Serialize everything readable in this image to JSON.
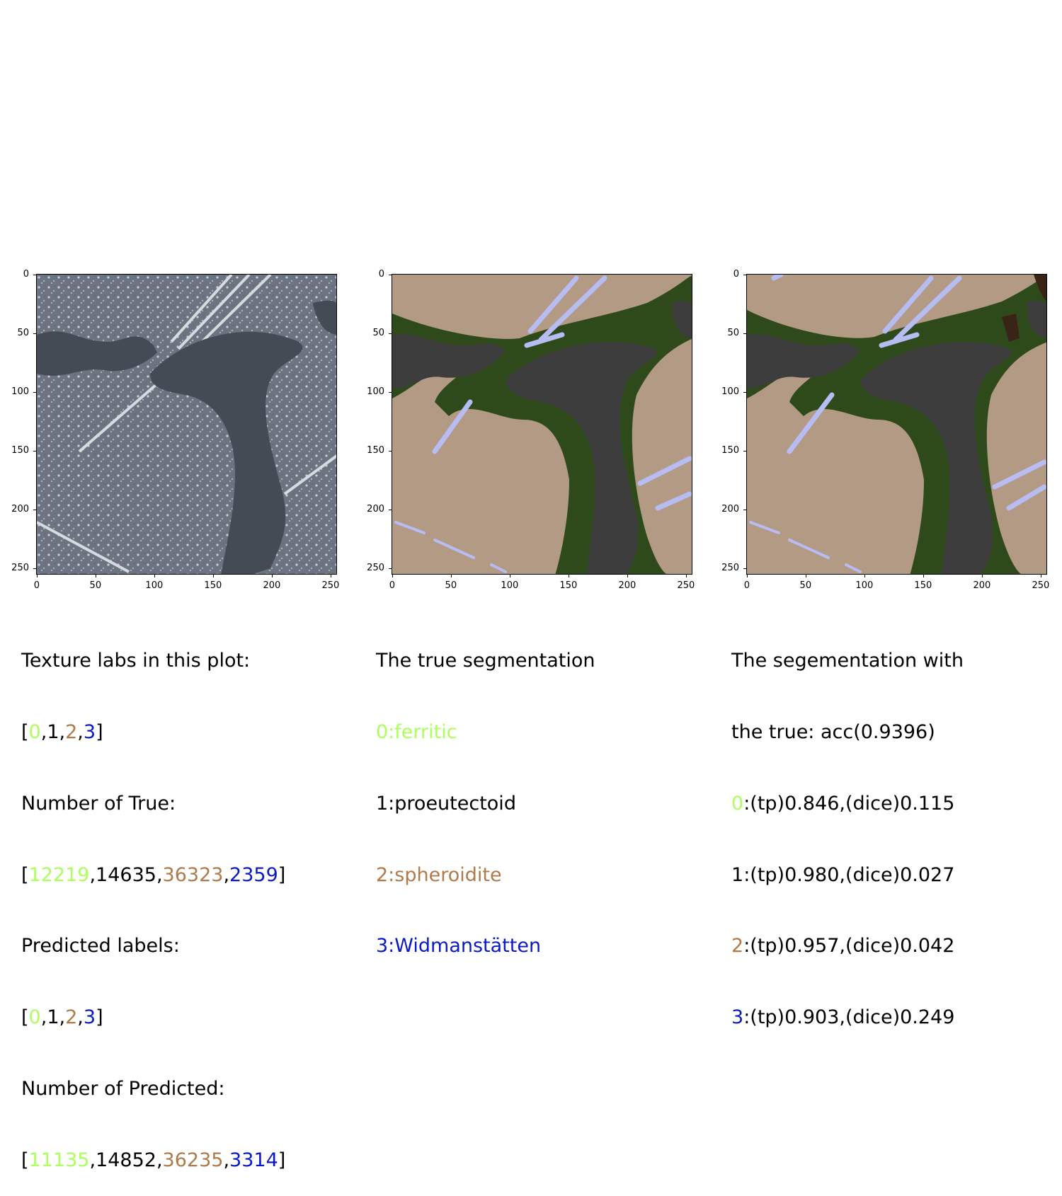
{
  "axis_ticks": {
    "x": [
      "0",
      "50",
      "100",
      "150",
      "200",
      "250"
    ],
    "y": [
      "0",
      "50",
      "100",
      "150",
      "200",
      "250"
    ]
  },
  "colors": {
    "label0": "#adff5f",
    "label1": "#000000",
    "label2": "#b07a4a",
    "label3": "#0a19c8",
    "ferritic_fill": "#2f4a1a",
    "proeutectoid_fill": "#3d3d3d",
    "spheroidite_fill": "#b39a85",
    "widmanstatten_fill": "#b7bcf2"
  },
  "left_caption": {
    "line1": "Texture labs in this plot:",
    "true_labels": [
      "0",
      "1",
      "2",
      "3"
    ],
    "line3": "Number of True:",
    "true_counts": [
      "12219",
      "14635",
      "36323",
      "2359"
    ],
    "line5": "Predicted labels:",
    "pred_labels": [
      "0",
      "1",
      "2",
      "3"
    ],
    "line7": "Number of Predicted:",
    "pred_counts": [
      "11135",
      "14852",
      "36235",
      "3314"
    ]
  },
  "middle_caption": {
    "title": "The true segmentation",
    "label0": "0:ferritic",
    "label1": "1:proeutectoid",
    "label2": "2:spheroidite",
    "label3": "3:Widmanstätten"
  },
  "right_caption": {
    "title_line1": "The segementation with",
    "title_line2": "the true: acc(0.9396)",
    "rows": [
      {
        "id": "0",
        "stats": ":(tp)0.846,(dice)0.115"
      },
      {
        "id": "1",
        "stats": ":(tp)0.980,(dice)0.027"
      },
      {
        "id": "2",
        "stats": ":(tp)0.957,(dice)0.042"
      },
      {
        "id": "3",
        "stats": ":(tp)0.903,(dice)0.249"
      }
    ]
  }
}
